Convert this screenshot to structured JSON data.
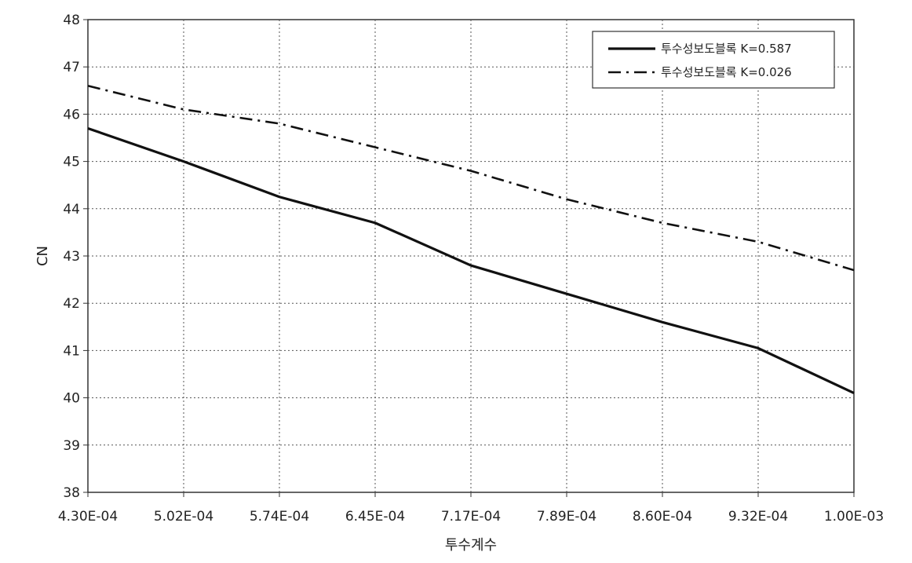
{
  "chart_data": {
    "type": "line",
    "title": "",
    "xlabel": "투수계수",
    "ylabel": "CN",
    "categories": [
      "4.30E-04",
      "5.02E-04",
      "5.74E-04",
      "6.45E-04",
      "7.17E-04",
      "7.89E-04",
      "8.60E-04",
      "9.32E-04",
      "1.00E-03"
    ],
    "y_ticks": [
      "38",
      "39",
      "40",
      "41",
      "42",
      "43",
      "44",
      "45",
      "46",
      "47",
      "48"
    ],
    "ylim": [
      38,
      48
    ],
    "grid": true,
    "legend_position": "top-right",
    "series": [
      {
        "name": "투수성보도블록 K=0.587",
        "style": "solid",
        "color": "#111111",
        "values": [
          45.7,
          45.0,
          44.25,
          43.7,
          42.8,
          42.2,
          41.6,
          41.05,
          40.1
        ]
      },
      {
        "name": "투수성보도블록 K=0.026",
        "style": "dash-dot",
        "color": "#111111",
        "values": [
          46.6,
          46.1,
          45.8,
          45.3,
          44.8,
          44.2,
          43.7,
          43.3,
          42.7
        ]
      }
    ]
  }
}
